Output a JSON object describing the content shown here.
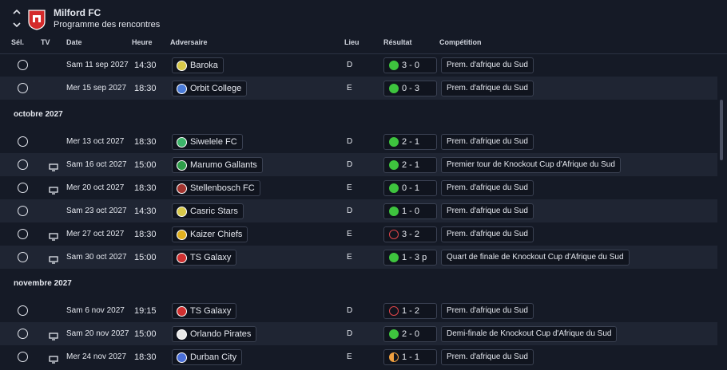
{
  "header": {
    "title": "Milford FC",
    "subtitle": "Programme des rencontres"
  },
  "columns": {
    "select": "Sél.",
    "tv": "TV",
    "date": "Date",
    "time": "Heure",
    "opponent": "Adversaire",
    "venue": "Lieu",
    "result": "Résultat",
    "competition": "Compétition"
  },
  "sections": [
    {
      "rows": [
        {
          "tv": false,
          "date": "Sam 11 sep 2027",
          "time": "14:30",
          "opponent": "Baroka",
          "badge": "#d8c94a",
          "venue": "D",
          "result": "3 - 0",
          "outcome": "win",
          "competition": "Prem. d'afrique du Sud"
        },
        {
          "tv": false,
          "date": "Mer 15 sep 2027",
          "time": "18:30",
          "opponent": "Orbit College",
          "badge": "#4a7bd8",
          "venue": "E",
          "result": "0 - 3",
          "outcome": "win",
          "competition": "Prem. d'afrique du Sud"
        }
      ]
    },
    {
      "title": "octobre 2027",
      "rows": [
        {
          "tv": false,
          "date": "Mer 13 oct 2027",
          "time": "18:30",
          "opponent": "Siwelele FC",
          "badge": "#3cb46a",
          "venue": "D",
          "result": "2 - 1",
          "outcome": "win",
          "competition": "Prem. d'afrique du Sud"
        },
        {
          "tv": true,
          "date": "Sam 16 oct 2027",
          "time": "15:00",
          "opponent": "Marumo Gallants",
          "badge": "#2f9e4a",
          "venue": "D",
          "result": "2 - 1",
          "outcome": "win",
          "competition": "Premier tour de Knockout Cup d'Afrique du Sud"
        },
        {
          "tv": true,
          "date": "Mer 20 oct 2027",
          "time": "18:30",
          "opponent": "Stellenbosch FC",
          "badge": "#a3342f",
          "venue": "E",
          "result": "0 - 1",
          "outcome": "win",
          "competition": "Prem. d'afrique du Sud"
        },
        {
          "tv": false,
          "date": "Sam 23 oct 2027",
          "time": "14:30",
          "opponent": "Casric Stars",
          "badge": "#d8c94a",
          "venue": "D",
          "result": "1 - 0",
          "outcome": "win",
          "competition": "Prem. d'afrique du Sud"
        },
        {
          "tv": true,
          "date": "Mer 27 oct 2027",
          "time": "18:30",
          "opponent": "Kaizer Chiefs",
          "badge": "#e0b020",
          "venue": "E",
          "result": "3 - 2",
          "outcome": "loss",
          "competition": "Prem. d'afrique du Sud"
        },
        {
          "tv": true,
          "date": "Sam 30 oct 2027",
          "time": "15:00",
          "opponent": "TS Galaxy",
          "badge": "#d03030",
          "venue": "E",
          "result": "1 - 3 p",
          "outcome": "win",
          "competition": "Quart de finale de Knockout Cup d'Afrique du Sud"
        }
      ]
    },
    {
      "title": "novembre 2027",
      "rows": [
        {
          "tv": false,
          "date": "Sam 6 nov 2027",
          "time": "19:15",
          "opponent": "TS Galaxy",
          "badge": "#d03030",
          "venue": "D",
          "result": "1 - 2",
          "outcome": "loss",
          "competition": "Prem. d'afrique du Sud"
        },
        {
          "tv": true,
          "date": "Sam 20 nov 2027",
          "time": "15:00",
          "opponent": "Orlando Pirates",
          "badge": "#e8e8e8",
          "venue": "D",
          "result": "2 - 0",
          "outcome": "win",
          "competition": "Demi-finale de Knockout Cup d'Afrique du Sud"
        },
        {
          "tv": true,
          "date": "Mer 24 nov 2027",
          "time": "18:30",
          "opponent": "Durban City",
          "badge": "#4a6fd8",
          "venue": "E",
          "result": "1 - 1",
          "outcome": "draw",
          "competition": "Prem. d'afrique du Sud"
        }
      ]
    }
  ]
}
